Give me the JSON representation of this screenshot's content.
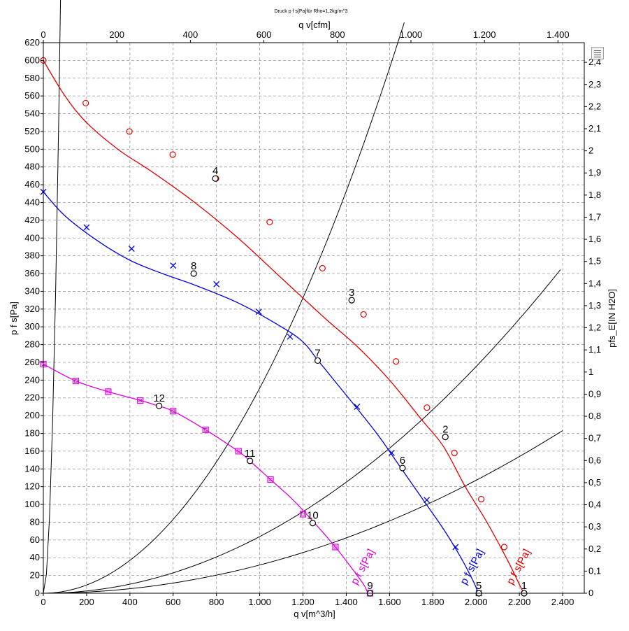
{
  "chart_data": {
    "type": "line",
    "title": "Druck p f s[Pa]für Rho=1,2kg/m^3",
    "xlabel": "q v[m^3/h]",
    "x2label": "q v[cfm]",
    "ylabel": "p f s[Pa]",
    "y2label": "pfs_E[IN H2O]",
    "xlim": [
      0,
      2500
    ],
    "ylim": [
      0,
      620
    ],
    "x2lim": [
      0,
      1471.5
    ],
    "y2lim": [
      0,
      2.489
    ],
    "x_ticks": [
      0,
      200,
      400,
      600,
      800,
      1000,
      1200,
      1400,
      1600,
      1800,
      2000,
      2200,
      2400
    ],
    "x_tick_labels": [
      "0",
      "200",
      "400",
      "600",
      "800",
      "1.000",
      "1.200",
      "1.400",
      "1.600",
      "1.800",
      "2.000",
      "2.200",
      "2.400"
    ],
    "y_ticks": [
      0,
      20,
      40,
      60,
      80,
      100,
      120,
      140,
      160,
      180,
      200,
      220,
      240,
      260,
      280,
      300,
      320,
      340,
      360,
      380,
      400,
      420,
      440,
      460,
      480,
      500,
      520,
      540,
      560,
      580,
      600,
      620
    ],
    "y_tick_labels": [
      "0",
      "20",
      "40",
      "60",
      "80",
      "100",
      "120",
      "140",
      "160",
      "180",
      "200",
      "220",
      "240",
      "260",
      "280",
      "300",
      "320",
      "340",
      "360",
      "380",
      "400",
      "420",
      "440",
      "460",
      "480",
      "500",
      "520",
      "540",
      "560",
      "580",
      "600",
      "620"
    ],
    "x2_ticks": [
      0,
      200,
      400,
      600,
      800,
      1000,
      1200,
      1400
    ],
    "x2_tick_labels": [
      "0",
      "200",
      "400",
      "600",
      "800",
      "1.000",
      "1.200",
      "1.400"
    ],
    "y2_ticks": [
      0,
      0.1,
      0.2,
      0.3,
      0.4,
      0.5,
      0.6,
      0.7,
      0.8,
      0.9,
      1,
      1.1,
      1.2,
      1.3,
      1.4,
      1.5,
      1.6,
      1.7,
      1.8,
      1.9,
      2,
      2.1,
      2.2,
      2.3,
      2.4
    ],
    "y2_tick_labels": [
      "0",
      "0,1",
      "0,2",
      "0,3",
      "0,4",
      "0,5",
      "0,6",
      "0,7",
      "0,8",
      "0,9",
      "1",
      "1,1",
      "1,2",
      "1,3",
      "1,4",
      "1,5",
      "1,6",
      "1,7",
      "1,8",
      "1,9",
      "2",
      "2,1",
      "2,2",
      "2,3",
      "2,4"
    ],
    "grid": true,
    "series": [
      {
        "name": "p f s[Pa]",
        "color": "#e00000",
        "marker": "circle",
        "label_at": [
          2210,
          28
        ],
        "curve": [
          [
            0,
            600
          ],
          [
            100,
            560
          ],
          [
            200,
            530
          ],
          [
            350,
            499
          ],
          [
            500,
            475
          ],
          [
            700,
            440
          ],
          [
            900,
            400
          ],
          [
            1100,
            355
          ],
          [
            1300,
            310
          ],
          [
            1450,
            278
          ],
          [
            1600,
            240
          ],
          [
            1750,
            195
          ],
          [
            1850,
            165
          ],
          [
            1950,
            120
          ],
          [
            2050,
            80
          ],
          [
            2150,
            35
          ],
          [
            2210,
            5
          ],
          [
            2225,
            0
          ]
        ],
        "markers": [
          [
            0,
            600
          ],
          [
            196,
            552
          ],
          [
            398,
            520
          ],
          [
            598,
            494
          ],
          [
            798,
            467
          ],
          [
            1046,
            418
          ],
          [
            1290,
            366
          ],
          [
            1480,
            314
          ],
          [
            1630,
            261
          ],
          [
            1773,
            209
          ],
          [
            1900,
            158
          ],
          [
            2024,
            106
          ],
          [
            2130,
            52
          ],
          [
            2222,
            0
          ]
        ]
      },
      {
        "name": "p f s[Pa]",
        "color": "#0000e0",
        "marker": "x",
        "label_at": [
          1995,
          28
        ],
        "curve": [
          [
            0,
            452
          ],
          [
            100,
            425
          ],
          [
            250,
            397
          ],
          [
            400,
            375
          ],
          [
            550,
            360
          ],
          [
            700,
            347
          ],
          [
            900,
            327
          ],
          [
            1100,
            300
          ],
          [
            1200,
            283
          ],
          [
            1270,
            262
          ],
          [
            1350,
            238
          ],
          [
            1450,
            208
          ],
          [
            1550,
            177
          ],
          [
            1650,
            142
          ],
          [
            1750,
            107
          ],
          [
            1850,
            72
          ],
          [
            1930,
            40
          ],
          [
            1990,
            12
          ],
          [
            2010,
            0
          ]
        ],
        "markers": [
          [
            0,
            452
          ],
          [
            200,
            412
          ],
          [
            408,
            388
          ],
          [
            600,
            369
          ],
          [
            800,
            348
          ],
          [
            996,
            317
          ],
          [
            1140,
            289
          ],
          [
            1450,
            210
          ],
          [
            1610,
            158
          ],
          [
            1772,
            105
          ],
          [
            1905,
            52
          ],
          [
            2013,
            0
          ]
        ]
      },
      {
        "name": "p f s[Pa]",
        "color": "#e000e0",
        "marker": "square",
        "label_at": [
          1490,
          28
        ],
        "curve": [
          [
            0,
            258
          ],
          [
            150,
            239
          ],
          [
            300,
            227
          ],
          [
            450,
            217
          ],
          [
            530,
            211
          ],
          [
            600,
            205
          ],
          [
            750,
            184
          ],
          [
            900,
            160
          ],
          [
            950,
            150
          ],
          [
            1050,
            128
          ],
          [
            1150,
            106
          ],
          [
            1250,
            80
          ],
          [
            1350,
            52
          ],
          [
            1420,
            30
          ],
          [
            1480,
            10
          ],
          [
            1500,
            0
          ]
        ],
        "markers": [
          [
            0,
            258
          ],
          [
            150,
            239
          ],
          [
            300,
            227
          ],
          [
            448,
            217
          ],
          [
            600,
            205
          ],
          [
            750,
            184
          ],
          [
            902,
            160
          ],
          [
            1050,
            128
          ],
          [
            1200,
            89
          ],
          [
            1350,
            52
          ],
          [
            1510,
            0
          ]
        ]
      }
    ],
    "system_curves": [
      {
        "k": 0.1052,
        "x_max": 1138
      },
      {
        "k": 0.000231,
        "x_max": 1668
      },
      {
        "k": 6.38e-05,
        "x_max": 2390
      },
      {
        "k": 3.18e-05,
        "x_max": 2400
      }
    ],
    "operating_points": [
      {
        "label": "1",
        "x": 2222,
        "y": 0
      },
      {
        "label": "2",
        "x": 1858,
        "y": 176
      },
      {
        "label": "3",
        "x": 1425,
        "y": 330
      },
      {
        "label": "4",
        "x": 795,
        "y": 467
      },
      {
        "label": "5",
        "x": 2013,
        "y": 0
      },
      {
        "label": "6",
        "x": 1660,
        "y": 141
      },
      {
        "label": "7",
        "x": 1268,
        "y": 262
      },
      {
        "label": "8",
        "x": 695,
        "y": 360
      },
      {
        "label": "9",
        "x": 1510,
        "y": 0
      },
      {
        "label": "10",
        "x": 1245,
        "y": 79
      },
      {
        "label": "11",
        "x": 955,
        "y": 149
      },
      {
        "label": "12",
        "x": 535,
        "y": 211
      }
    ]
  },
  "legend_icon": "legend-grid-icon"
}
